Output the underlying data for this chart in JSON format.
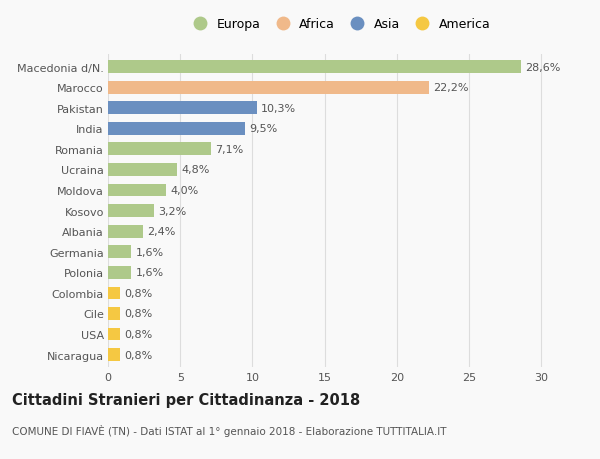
{
  "categories": [
    "Macedonia d/N.",
    "Marocco",
    "Pakistan",
    "India",
    "Romania",
    "Ucraina",
    "Moldova",
    "Kosovo",
    "Albania",
    "Germania",
    "Polonia",
    "Colombia",
    "Cile",
    "USA",
    "Nicaragua"
  ],
  "values": [
    28.6,
    22.2,
    10.3,
    9.5,
    7.1,
    4.8,
    4.0,
    3.2,
    2.4,
    1.6,
    1.6,
    0.8,
    0.8,
    0.8,
    0.8
  ],
  "labels": [
    "28,6%",
    "22,2%",
    "10,3%",
    "9,5%",
    "7,1%",
    "4,8%",
    "4,0%",
    "3,2%",
    "2,4%",
    "1,6%",
    "1,6%",
    "0,8%",
    "0,8%",
    "0,8%",
    "0,8%"
  ],
  "continents": [
    "Europa",
    "Africa",
    "Asia",
    "Asia",
    "Europa",
    "Europa",
    "Europa",
    "Europa",
    "Europa",
    "Europa",
    "Europa",
    "America",
    "America",
    "America",
    "America"
  ],
  "colors": {
    "Europa": "#aec98a",
    "Africa": "#f0b98a",
    "Asia": "#6a8fc0",
    "America": "#f5c842"
  },
  "xlim": [
    0,
    32
  ],
  "xticks": [
    0,
    5,
    10,
    15,
    20,
    25,
    30
  ],
  "title": "Cittadini Stranieri per Cittadinanza - 2018",
  "subtitle": "COMUNE DI FIAVÈ (TN) - Dati ISTAT al 1° gennaio 2018 - Elaborazione TUTTITALIA.IT",
  "bg_color": "#f9f9f9",
  "grid_color": "#dddddd",
  "bar_height": 0.62,
  "label_fontsize": 8,
  "tick_fontsize": 8,
  "title_fontsize": 10.5,
  "subtitle_fontsize": 7.5,
  "legend_fontsize": 9,
  "legend_labels": [
    "Europa",
    "Africa",
    "Asia",
    "America"
  ]
}
